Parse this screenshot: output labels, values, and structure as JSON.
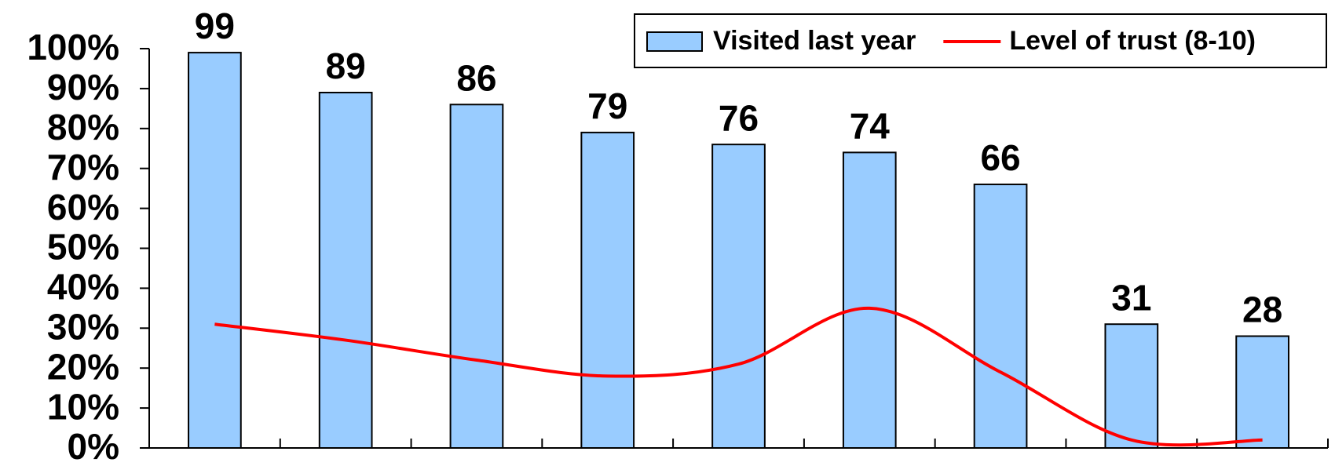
{
  "chart_data": {
    "type": "bar",
    "categories": [
      null,
      null,
      null,
      null,
      null,
      null,
      null,
      null,
      null
    ],
    "series": [
      {
        "name": "Visited last year",
        "type": "bar",
        "color": "#99ccff",
        "values": [
          99,
          89,
          86,
          79,
          76,
          74,
          66,
          31,
          28
        ]
      },
      {
        "name": "Level of trust (8-10)",
        "type": "line",
        "color": "#ff0000",
        "values": [
          31,
          27,
          22,
          18,
          21,
          35,
          19,
          2,
          2
        ]
      }
    ],
    "ylim": [
      0,
      100
    ],
    "yticks": [
      {
        "value": 0,
        "label": "0%"
      },
      {
        "value": 10,
        "label": "10%"
      },
      {
        "value": 20,
        "label": "20%"
      },
      {
        "value": 30,
        "label": "30%"
      },
      {
        "value": 40,
        "label": "40%"
      },
      {
        "value": 50,
        "label": "50%"
      },
      {
        "value": 60,
        "label": "60%"
      },
      {
        "value": 70,
        "label": "70%"
      },
      {
        "value": 80,
        "label": "80%"
      },
      {
        "value": 90,
        "label": "90%"
      },
      {
        "value": 100,
        "label": "100%"
      }
    ],
    "legend": "top-right"
  }
}
